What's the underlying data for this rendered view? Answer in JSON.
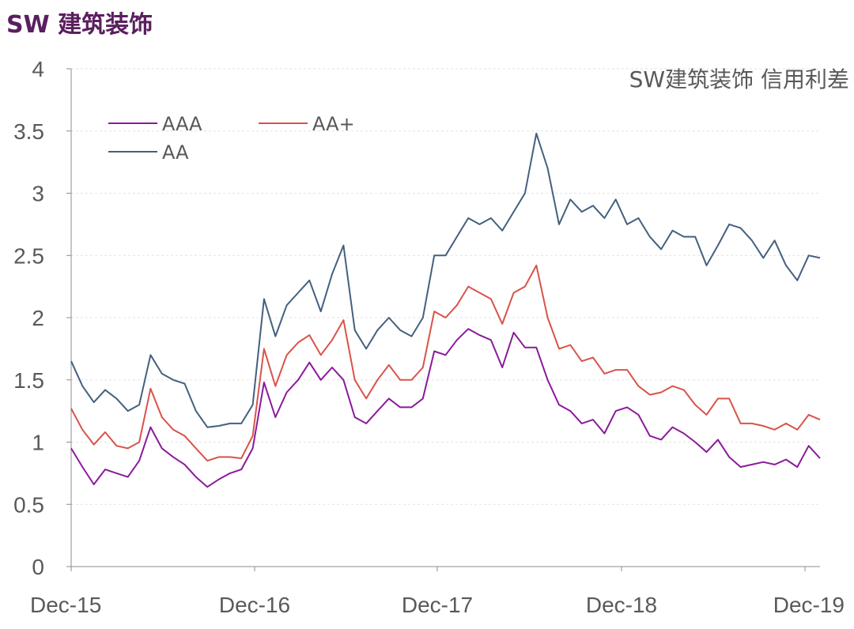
{
  "page_title": "SW 建筑装饰",
  "chart_data": {
    "type": "line",
    "title": "SW建筑装饰 信用利差",
    "xlabel": "",
    "ylabel": "",
    "ylim": [
      0,
      4
    ],
    "yticks": [
      "0",
      "0.5",
      "1",
      "1.5",
      "2",
      "2.5",
      "3",
      "3.5",
      "4"
    ],
    "xticks": [
      "Dec-15",
      "Dec-16",
      "Dec-17",
      "Dec-18",
      "Dec-19"
    ],
    "x_start": "Dec-15",
    "x_end": "Jan-20",
    "grid": true,
    "legend_position": "top-left",
    "colors": {
      "AAA": "#8b1a9b",
      "AA+": "#d9534a",
      "AA": "#44607f"
    },
    "series": [
      {
        "name": "AAA",
        "values": [
          0.95,
          0.8,
          0.66,
          0.78,
          0.75,
          0.72,
          0.85,
          1.12,
          0.95,
          0.88,
          0.82,
          0.72,
          0.64,
          0.7,
          0.75,
          0.78,
          0.95,
          1.48,
          1.2,
          1.4,
          1.5,
          1.64,
          1.5,
          1.6,
          1.5,
          1.2,
          1.15,
          1.25,
          1.35,
          1.28,
          1.28,
          1.35,
          1.73,
          1.7,
          1.82,
          1.91,
          1.86,
          1.82,
          1.6,
          1.88,
          1.76,
          1.76,
          1.5,
          1.3,
          1.25,
          1.15,
          1.18,
          1.07,
          1.25,
          1.28,
          1.22,
          1.05,
          1.02,
          1.12,
          1.07,
          1.0,
          0.92,
          1.02,
          0.88,
          0.8,
          0.82,
          0.84,
          0.82,
          0.86,
          0.8,
          0.97,
          0.87
        ]
      },
      {
        "name": "AA+",
        "values": [
          1.27,
          1.1,
          0.98,
          1.08,
          0.97,
          0.95,
          1.0,
          1.43,
          1.2,
          1.1,
          1.05,
          0.95,
          0.85,
          0.88,
          0.88,
          0.87,
          1.05,
          1.75,
          1.45,
          1.7,
          1.8,
          1.86,
          1.7,
          1.82,
          1.98,
          1.5,
          1.35,
          1.5,
          1.62,
          1.5,
          1.5,
          1.6,
          2.05,
          2.0,
          2.1,
          2.25,
          2.2,
          2.15,
          1.95,
          2.2,
          2.25,
          2.42,
          2.0,
          1.75,
          1.78,
          1.65,
          1.68,
          1.55,
          1.58,
          1.58,
          1.45,
          1.38,
          1.4,
          1.45,
          1.42,
          1.3,
          1.22,
          1.35,
          1.35,
          1.15,
          1.15,
          1.13,
          1.1,
          1.15,
          1.1,
          1.22,
          1.18
        ]
      },
      {
        "name": "AA",
        "values": [
          1.65,
          1.45,
          1.32,
          1.42,
          1.35,
          1.25,
          1.3,
          1.7,
          1.55,
          1.5,
          1.47,
          1.25,
          1.12,
          1.13,
          1.15,
          1.15,
          1.3,
          2.15,
          1.85,
          2.1,
          2.2,
          2.3,
          2.05,
          2.35,
          2.58,
          1.9,
          1.75,
          1.9,
          2.0,
          1.9,
          1.85,
          2.0,
          2.5,
          2.5,
          2.65,
          2.8,
          2.75,
          2.8,
          2.7,
          2.85,
          3.0,
          3.48,
          3.2,
          2.75,
          2.95,
          2.85,
          2.9,
          2.8,
          2.95,
          2.75,
          2.8,
          2.65,
          2.55,
          2.7,
          2.65,
          2.65,
          2.42,
          2.58,
          2.75,
          2.72,
          2.62,
          2.48,
          2.62,
          2.42,
          2.3,
          2.5,
          2.48
        ]
      }
    ]
  }
}
